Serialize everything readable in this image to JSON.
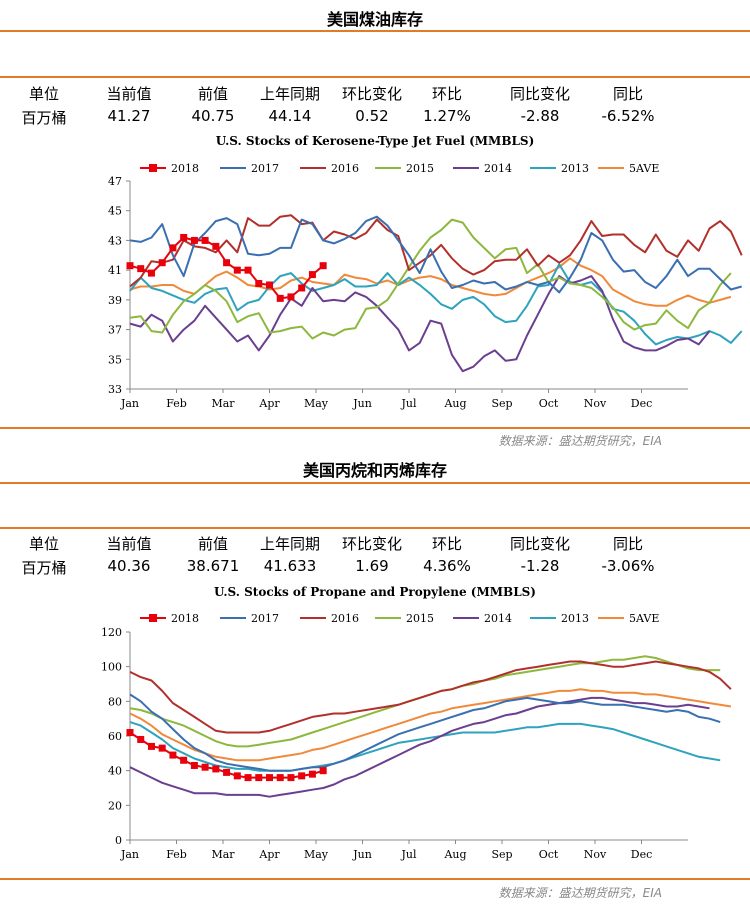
{
  "sections": [
    {
      "title": "美国煤油库存",
      "headers": [
        "单位",
        "当前值",
        "前值",
        "上年同期",
        "环比变化",
        "环比",
        "同比变化",
        "同比"
      ],
      "values": [
        "百万桶",
        "41.27",
        "40.75",
        "44.14",
        "0.52",
        "1.27%",
        "-2.88",
        "-6.52%"
      ],
      "source": "数据来源：盛达期货研究，EIA"
    },
    {
      "title": "美国丙烷和丙烯库存",
      "headers": [
        "单位",
        "当前值",
        "前值",
        "上年同期",
        "环比变化",
        "环比",
        "同比变化",
        "同比"
      ],
      "values": [
        "百万桶",
        "40.36",
        "38.671",
        "41.633",
        "1.69",
        "4.36%",
        "-1.28",
        "-3.06%"
      ],
      "source": "数据来源：盛达期货研究，EIA"
    }
  ],
  "colors": {
    "2018": "#e8000b",
    "2017": "#3a6fb0",
    "2016": "#b2302c",
    "2015": "#8db83e",
    "2014": "#6b3f8f",
    "2013": "#2fa3be",
    "5AVE": "#f08a3a",
    "rule": "#e07b2a"
  },
  "chart_data": [
    {
      "type": "line",
      "title": "U.S. Stocks of Kerosene-Type Jet Fuel (MMBLS)",
      "xlabel": "",
      "ylabel": "",
      "x_ticks": [
        "Jan",
        "Feb",
        "Mar",
        "Apr",
        "May",
        "Jun",
        "Jul",
        "Aug",
        "Sep",
        "Oct",
        "Nov",
        "Dec"
      ],
      "ylim": [
        33,
        47
      ],
      "y_ticks": [
        33,
        35,
        37,
        39,
        41,
        43,
        45,
        47
      ],
      "grid": false,
      "legend": "top",
      "series": [
        {
          "name": "2018",
          "values": [
            41.3,
            41.1,
            40.8,
            41.5,
            42.5,
            43.2,
            43.0,
            43.0,
            42.6,
            41.5,
            41.0,
            41.0,
            40.1,
            40.0,
            39.1,
            39.2,
            39.8,
            40.7,
            41.3
          ]
        },
        {
          "name": "2017",
          "values": [
            43.0,
            42.9,
            43.2,
            44.1,
            42.0,
            40.6,
            42.8,
            43.5,
            44.3,
            44.5,
            44.1,
            42.1,
            42.0,
            42.1,
            42.5,
            42.5,
            44.4,
            44.1,
            43.0,
            42.8,
            43.1,
            43.5,
            44.3,
            44.6,
            44.0,
            43.0,
            42.0,
            40.8,
            42.4,
            40.9,
            39.8,
            40.0,
            40.3,
            40.1,
            40.2,
            39.7,
            39.9,
            40.2,
            40.0,
            40.2,
            39.5,
            40.5,
            41.7,
            43.5,
            43.0,
            41.7,
            40.9,
            41.0,
            40.2,
            39.8,
            40.6,
            41.7,
            40.6,
            41.1,
            41.1,
            40.4,
            39.7,
            39.9
          ]
        },
        {
          "name": "2016",
          "values": [
            39.9,
            40.5,
            41.6,
            41.5,
            41.7,
            43.0,
            42.6,
            42.5,
            42.2,
            43.0,
            42.2,
            44.5,
            44.0,
            44.0,
            44.6,
            44.7,
            44.1,
            44.2,
            43.0,
            43.6,
            43.4,
            43.1,
            43.5,
            44.4,
            43.7,
            43.3,
            41.0,
            41.5,
            42.0,
            42.7,
            41.8,
            41.1,
            40.7,
            41.0,
            41.6,
            41.7,
            41.7,
            42.4,
            41.3,
            42.0,
            41.5,
            42.0,
            43.0,
            44.3,
            43.3,
            43.4,
            43.4,
            42.7,
            42.2,
            43.4,
            42.3,
            41.9,
            43.0,
            42.3,
            43.8,
            44.3,
            43.6,
            42.0
          ]
        },
        {
          "name": "2015",
          "values": [
            37.8,
            37.9,
            36.9,
            36.8,
            38.0,
            38.9,
            39.4,
            40.0,
            39.6,
            38.9,
            37.5,
            37.9,
            38.1,
            36.8,
            36.9,
            37.1,
            37.2,
            36.4,
            36.8,
            36.6,
            37.0,
            37.1,
            38.4,
            38.5,
            39.0,
            40.1,
            41.2,
            42.3,
            43.2,
            43.7,
            44.4,
            44.2,
            43.2,
            42.5,
            41.8,
            42.4,
            42.5,
            40.8,
            41.4,
            40.2,
            40.5,
            40.1,
            40.0,
            39.8,
            39.2,
            38.5,
            37.5,
            37.0,
            37.3,
            37.4,
            38.3,
            37.6,
            37.1,
            38.3,
            38.8,
            40.0,
            40.8
          ]
        },
        {
          "name": "2014",
          "values": [
            37.4,
            37.2,
            38.0,
            37.6,
            36.2,
            37.0,
            37.6,
            38.6,
            37.8,
            37.0,
            36.2,
            36.6,
            35.6,
            36.6,
            38.0,
            39.1,
            38.6,
            39.8,
            38.9,
            39.0,
            38.9,
            39.5,
            39.2,
            38.6,
            37.8,
            37.0,
            35.6,
            36.1,
            37.6,
            37.4,
            35.3,
            34.2,
            34.5,
            35.2,
            35.6,
            34.9,
            35.0,
            36.6,
            38.0,
            39.4,
            40.6,
            40.1,
            40.3,
            40.6,
            39.6,
            37.7,
            36.2,
            35.8,
            35.6,
            35.6,
            35.9,
            36.3,
            36.4,
            36.0,
            36.9
          ]
        },
        {
          "name": "2013",
          "values": [
            39.6,
            40.5,
            39.8,
            39.6,
            39.3,
            39.0,
            38.8,
            39.4,
            39.7,
            39.8,
            38.3,
            38.8,
            39.0,
            39.9,
            40.6,
            40.8,
            40.1,
            39.6,
            39.8,
            40.0,
            40.4,
            39.9,
            39.9,
            40.0,
            40.8,
            40.0,
            40.5,
            40.0,
            39.4,
            38.7,
            38.4,
            39.0,
            39.2,
            38.7,
            37.9,
            37.5,
            37.6,
            38.6,
            39.9,
            40.0,
            41.4,
            40.2,
            40.0,
            40.2,
            39.5,
            38.4,
            38.2,
            37.6,
            36.7,
            36.0,
            36.3,
            36.5,
            36.4,
            36.6,
            36.9,
            36.6,
            36.1,
            36.9
          ]
        },
        {
          "name": "5AVE",
          "values": [
            39.7,
            39.9,
            39.9,
            40.0,
            40.0,
            39.6,
            39.4,
            40.0,
            40.6,
            40.9,
            40.5,
            40.0,
            39.9,
            39.7,
            39.8,
            40.3,
            40.5,
            40.2,
            40.1,
            40.0,
            40.7,
            40.5,
            40.4,
            40.1,
            40.3,
            40.0,
            40.3,
            40.5,
            40.6,
            40.4,
            40.0,
            39.8,
            39.6,
            39.4,
            39.3,
            39.4,
            39.8,
            40.2,
            40.5,
            40.8,
            41.2,
            41.8,
            41.3,
            41.0,
            40.6,
            39.7,
            39.3,
            38.9,
            38.7,
            38.6,
            38.6,
            39.0,
            39.3,
            39.0,
            38.8,
            39.0,
            39.2
          ]
        }
      ]
    },
    {
      "type": "line",
      "title": "U.S. Stocks of Propane and Propylene (MMBLS)",
      "xlabel": "",
      "ylabel": "",
      "x_ticks": [
        "Jan",
        "Feb",
        "Mar",
        "Apr",
        "May",
        "Jun",
        "Jul",
        "Aug",
        "Sep",
        "Oct",
        "Nov",
        "Dec"
      ],
      "ylim": [
        0,
        120
      ],
      "y_ticks": [
        0,
        20,
        40,
        60,
        80,
        100,
        120
      ],
      "grid": false,
      "legend": "top",
      "series": [
        {
          "name": "2018",
          "values": [
            62,
            58,
            54,
            53,
            49,
            46,
            43,
            42,
            41,
            39,
            37,
            36,
            36,
            36,
            36,
            36,
            37,
            38,
            40
          ]
        },
        {
          "name": "2017",
          "values": [
            84,
            80,
            74,
            70,
            64,
            58,
            53,
            50,
            46,
            44,
            43,
            42,
            41,
            40,
            40,
            40,
            41,
            42,
            42,
            44,
            46,
            49,
            52,
            55,
            58,
            61,
            63,
            65,
            67,
            69,
            71,
            73,
            75,
            76,
            78,
            80,
            81,
            82,
            81,
            80,
            79,
            79,
            80,
            79,
            78,
            78,
            78,
            77,
            76,
            75,
            74,
            75,
            74,
            71,
            70,
            68
          ]
        },
        {
          "name": "2016",
          "values": [
            97,
            94,
            92,
            86,
            79,
            75,
            71,
            67,
            63,
            62,
            62,
            62,
            62,
            63,
            65,
            67,
            69,
            71,
            72,
            73,
            73,
            74,
            75,
            76,
            77,
            78,
            80,
            82,
            84,
            86,
            87,
            89,
            91,
            92,
            94,
            96,
            98,
            99,
            100,
            101,
            102,
            103,
            103,
            102,
            101,
            100,
            100,
            101,
            102,
            103,
            102,
            101,
            100,
            99,
            97,
            93,
            87
          ]
        },
        {
          "name": "2015",
          "values": [
            76,
            75,
            73,
            70,
            68,
            66,
            63,
            60,
            57,
            55,
            54,
            54,
            55,
            56,
            57,
            58,
            60,
            62,
            64,
            66,
            68,
            70,
            72,
            74,
            76,
            78,
            80,
            82,
            84,
            86,
            87,
            89,
            90,
            92,
            93,
            95,
            96,
            97,
            98,
            99,
            100,
            101,
            102,
            102,
            103,
            104,
            104,
            105,
            106,
            105,
            103,
            101,
            99,
            98,
            98,
            98
          ]
        },
        {
          "name": "2014",
          "values": [
            42,
            39,
            36,
            33,
            31,
            29,
            27,
            27,
            27,
            26,
            26,
            26,
            26,
            25,
            26,
            27,
            28,
            29,
            30,
            32,
            35,
            37,
            40,
            43,
            46,
            49,
            52,
            55,
            57,
            60,
            63,
            65,
            67,
            68,
            70,
            72,
            73,
            75,
            77,
            78,
            79,
            80,
            81,
            82,
            82,
            81,
            80,
            79,
            79,
            78,
            77,
            77,
            78,
            77,
            76
          ]
        },
        {
          "name": "2013",
          "values": [
            68,
            66,
            62,
            58,
            53,
            50,
            47,
            45,
            43,
            42,
            41,
            41,
            40,
            40,
            40,
            40,
            41,
            42,
            43,
            44,
            46,
            48,
            50,
            52,
            54,
            56,
            57,
            58,
            59,
            60,
            61,
            62,
            62,
            62,
            62,
            63,
            64,
            65,
            65,
            66,
            67,
            67,
            67,
            66,
            65,
            64,
            62,
            60,
            58,
            56,
            54,
            52,
            50,
            48,
            47,
            46
          ]
        },
        {
          "name": "5AVE",
          "values": [
            73,
            70,
            66,
            61,
            58,
            55,
            52,
            50,
            48,
            47,
            46,
            46,
            46,
            47,
            48,
            49,
            50,
            52,
            53,
            55,
            57,
            59,
            61,
            63,
            65,
            67,
            69,
            71,
            73,
            74,
            76,
            77,
            78,
            79,
            80,
            81,
            82,
            83,
            84,
            85,
            86,
            86,
            87,
            86,
            86,
            85,
            85,
            85,
            84,
            84,
            83,
            82,
            81,
            80,
            79,
            78,
            77
          ]
        }
      ]
    }
  ]
}
